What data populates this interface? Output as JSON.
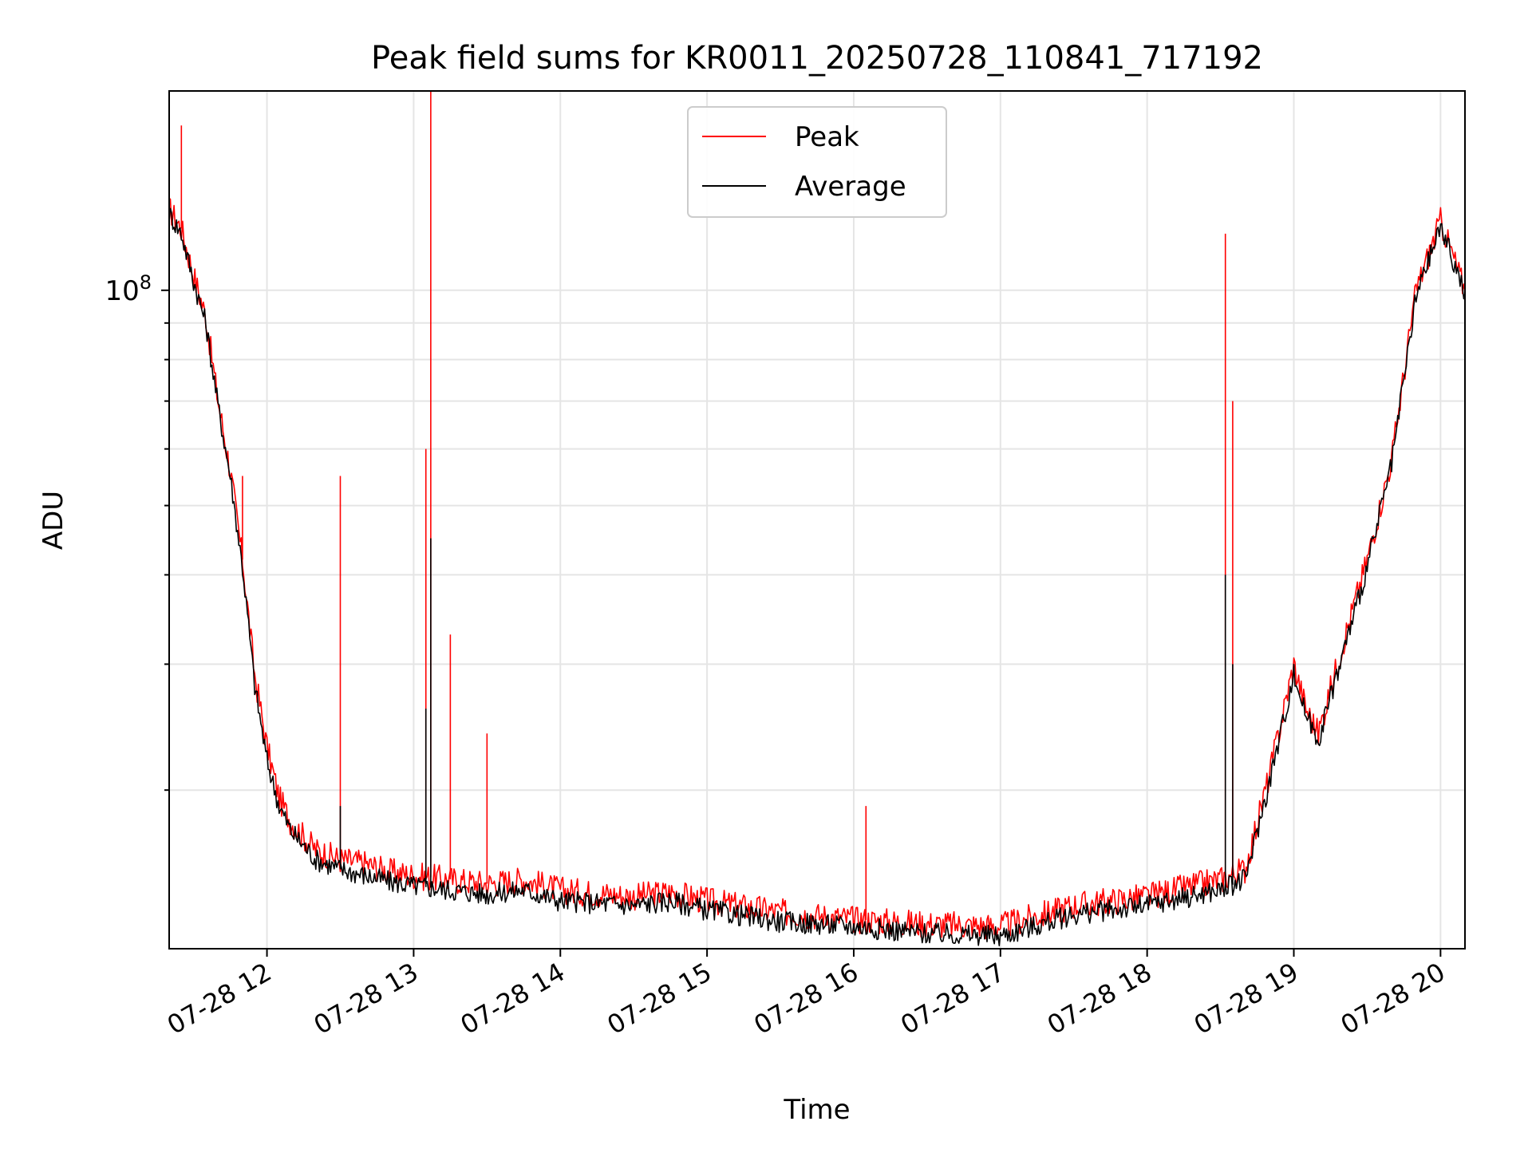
{
  "chart_data": {
    "type": "line",
    "title": "Peak field sums for KR0011_20250728_110841_717192",
    "xlabel": "Time",
    "ylabel": "ADU",
    "y_scale": "log",
    "grid": true,
    "legend_position": "top-center",
    "x_ticks": [
      "07-28 12",
      "07-28 13",
      "07-28 14",
      "07-28 15",
      "07-28 16",
      "07-28 17",
      "07-28 18",
      "07-28 19",
      "07-28 20"
    ],
    "y_tick_major_label": "10^8",
    "xlim": [
      "2025-07-28 11:20",
      "2025-07-28 20:10"
    ],
    "ylim": [
      12000000,
      190000000
    ],
    "colors": {
      "Peak": "#ff0000",
      "Average": "#000000"
    },
    "series": [
      {
        "name": "Peak",
        "color": "#ff0000",
        "points": [
          [
            "2025-07-28 11:20",
            130000000
          ],
          [
            "2025-07-28 11:25",
            122000000
          ],
          [
            "2025-07-28 11:30",
            105000000
          ],
          [
            "2025-07-28 11:35",
            92000000
          ],
          [
            "2025-07-28 11:40",
            70000000
          ],
          [
            "2025-07-28 11:45",
            56000000
          ],
          [
            "2025-07-28 11:50",
            42000000
          ],
          [
            "2025-07-28 11:55",
            29000000
          ],
          [
            "2025-07-28 12:00",
            23000000
          ],
          [
            "2025-07-28 12:05",
            19500000
          ],
          [
            "2025-07-28 12:10",
            18000000
          ],
          [
            "2025-07-28 12:20",
            16500000
          ],
          [
            "2025-07-28 12:30",
            16000000
          ],
          [
            "2025-07-28 12:40",
            15800000
          ],
          [
            "2025-07-28 12:50",
            15400000
          ],
          [
            "2025-07-28 13:00",
            15200000
          ],
          [
            "2025-07-28 13:15",
            15000000
          ],
          [
            "2025-07-28 13:30",
            14800000
          ],
          [
            "2025-07-28 13:45",
            15000000
          ],
          [
            "2025-07-28 14:00",
            14500000
          ],
          [
            "2025-07-28 14:30",
            14200000
          ],
          [
            "2025-07-28 14:45",
            14400000
          ],
          [
            "2025-07-28 15:00",
            14000000
          ],
          [
            "2025-07-28 15:30",
            13500000
          ],
          [
            "2025-07-28 16:00",
            13200000
          ],
          [
            "2025-07-28 16:30",
            13000000
          ],
          [
            "2025-07-28 17:00",
            12900000
          ],
          [
            "2025-07-28 17:30",
            13800000
          ],
          [
            "2025-07-28 18:00",
            14200000
          ],
          [
            "2025-07-28 18:30",
            15000000
          ],
          [
            "2025-07-28 18:40",
            15500000
          ],
          [
            "2025-07-28 18:45",
            18000000
          ],
          [
            "2025-07-28 18:50",
            21000000
          ],
          [
            "2025-07-28 19:00",
            30000000
          ],
          [
            "2025-07-28 19:05",
            26000000
          ],
          [
            "2025-07-28 19:10",
            24000000
          ],
          [
            "2025-07-28 19:20",
            32000000
          ],
          [
            "2025-07-28 19:30",
            42000000
          ],
          [
            "2025-07-28 19:40",
            58000000
          ],
          [
            "2025-07-28 19:50",
            100000000
          ],
          [
            "2025-07-28 20:00",
            125000000
          ],
          [
            "2025-07-28 20:10",
            100000000
          ]
        ],
        "spikes": [
          [
            "2025-07-28 11:25",
            170000000
          ],
          [
            "2025-07-28 11:50",
            55000000
          ],
          [
            "2025-07-28 12:30",
            55000000
          ],
          [
            "2025-07-28 13:05",
            60000000
          ],
          [
            "2025-07-28 13:07",
            190000000
          ],
          [
            "2025-07-28 13:15",
            33000000
          ],
          [
            "2025-07-28 13:30",
            24000000
          ],
          [
            "2025-07-28 16:05",
            19000000
          ],
          [
            "2025-07-28 18:32",
            120000000
          ],
          [
            "2025-07-28 18:35",
            70000000
          ]
        ]
      },
      {
        "name": "Average",
        "color": "#000000",
        "points": [
          [
            "2025-07-28 11:20",
            128000000
          ],
          [
            "2025-07-28 11:25",
            120000000
          ],
          [
            "2025-07-28 11:30",
            103000000
          ],
          [
            "2025-07-28 11:35",
            90000000
          ],
          [
            "2025-07-28 11:40",
            69000000
          ],
          [
            "2025-07-28 11:45",
            55000000
          ],
          [
            "2025-07-28 11:50",
            41000000
          ],
          [
            "2025-07-28 11:55",
            28000000
          ],
          [
            "2025-07-28 12:00",
            22000000
          ],
          [
            "2025-07-28 12:05",
            19000000
          ],
          [
            "2025-07-28 12:10",
            17500000
          ],
          [
            "2025-07-28 12:20",
            16000000
          ],
          [
            "2025-07-28 12:30",
            15500000
          ],
          [
            "2025-07-28 12:40",
            15200000
          ],
          [
            "2025-07-28 12:50",
            14900000
          ],
          [
            "2025-07-28 13:00",
            14700000
          ],
          [
            "2025-07-28 13:15",
            14500000
          ],
          [
            "2025-07-28 13:30",
            14300000
          ],
          [
            "2025-07-28 13:45",
            14500000
          ],
          [
            "2025-07-28 14:00",
            14000000
          ],
          [
            "2025-07-28 14:30",
            13800000
          ],
          [
            "2025-07-28 14:45",
            14000000
          ],
          [
            "2025-07-28 15:00",
            13600000
          ],
          [
            "2025-07-28 15:30",
            13100000
          ],
          [
            "2025-07-28 16:00",
            12900000
          ],
          [
            "2025-07-28 16:30",
            12600000
          ],
          [
            "2025-07-28 17:00",
            12500000
          ],
          [
            "2025-07-28 17:30",
            13400000
          ],
          [
            "2025-07-28 18:00",
            13800000
          ],
          [
            "2025-07-28 18:30",
            14500000
          ],
          [
            "2025-07-28 18:40",
            15000000
          ],
          [
            "2025-07-28 18:45",
            17500000
          ],
          [
            "2025-07-28 18:50",
            20500000
          ],
          [
            "2025-07-28 19:00",
            29000000
          ],
          [
            "2025-07-28 19:05",
            25500000
          ],
          [
            "2025-07-28 19:10",
            23500000
          ],
          [
            "2025-07-28 19:20",
            31000000
          ],
          [
            "2025-07-28 19:30",
            41000000
          ],
          [
            "2025-07-28 19:40",
            57000000
          ],
          [
            "2025-07-28 19:50",
            98000000
          ],
          [
            "2025-07-28 20:00",
            123000000
          ],
          [
            "2025-07-28 20:10",
            99000000
          ]
        ],
        "spikes": [
          [
            "2025-07-28 12:30",
            19000000
          ],
          [
            "2025-07-28 13:05",
            26000000
          ],
          [
            "2025-07-28 13:07",
            45000000
          ],
          [
            "2025-07-28 18:32",
            40000000
          ],
          [
            "2025-07-28 18:35",
            30000000
          ]
        ]
      }
    ]
  }
}
